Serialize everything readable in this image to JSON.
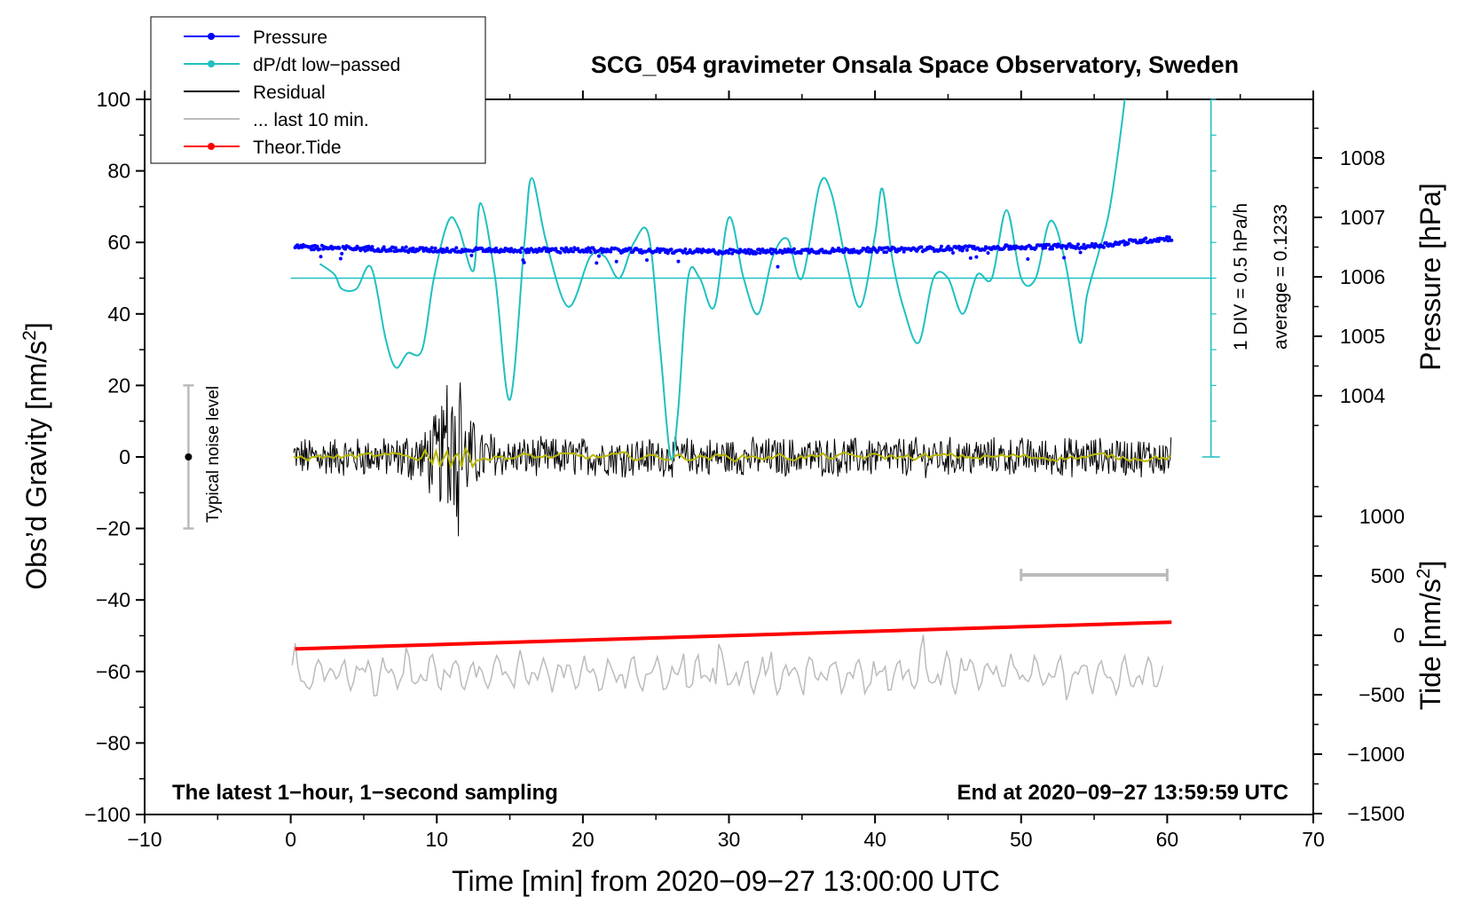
{
  "chart_data": {
    "type": "line",
    "title": "SCG_054 gravimeter Onsala Space Observatory, Sweden",
    "xlabel": "Time [min] from 2020−09−27 13:00:00 UTC",
    "ylabel_left_pre": "Obs’d Gravity [nm/s",
    "ylabel_left_sup": "2",
    "ylabel_left_post": "]",
    "ylabel_pressure": "Pressure [hPa]",
    "ylabel_tide_pre": "Tide [nm/s",
    "ylabel_tide_sup": "2",
    "ylabel_tide_post": "]",
    "xlim": [
      -10,
      70
    ],
    "ylim": [
      -100,
      100
    ],
    "x_ticks": [
      "−10",
      "0",
      "10",
      "20",
      "30",
      "40",
      "50",
      "60",
      "70"
    ],
    "y_ticks": [
      "100",
      "80",
      "60",
      "40",
      "20",
      "0",
      "−20",
      "−40",
      "−60",
      "−80",
      "−100"
    ],
    "pressure_ticks": [
      "1008",
      "1007",
      "1006",
      "1005",
      "1004"
    ],
    "pressure_ylim": [
      1003.05,
      1008.95
    ],
    "tide_ticks": [
      "1000",
      "500",
      "0",
      "−500",
      "−1000",
      "−1500"
    ],
    "tide_ylim": [
      -1500,
      1500
    ],
    "legend": [
      {
        "label": "Pressure",
        "color": "#0000ff",
        "marker": true
      },
      {
        "label": "dP/dt low−passed",
        "color": "#20c0c0",
        "marker": true
      },
      {
        "label": "Residual",
        "color": "#000000",
        "marker": false
      },
      {
        "label": "... last 10 min.",
        "color": "#bbbbbb",
        "marker": false
      },
      {
        "label": "Theor.Tide",
        "color": "#ff0000",
        "marker": true
      }
    ],
    "series": [
      {
        "name": "Pressure",
        "axis": "pressure_hPa",
        "color": "#0000ff",
        "x": [
          0.3,
          10,
          20,
          30,
          40,
          50,
          55,
          58,
          60.3
        ],
        "y": [
          1006.5,
          1006.45,
          1006.45,
          1006.42,
          1006.45,
          1006.5,
          1006.52,
          1006.6,
          1006.65
        ]
      },
      {
        "name": "dP/dt low-passed",
        "axis": "gravity_units",
        "color": "#20c0c0",
        "baseline": 50,
        "x": [
          2,
          3,
          3.5,
          4.5,
          5.5,
          6.5,
          7.2,
          8,
          9,
          9.8,
          10.8,
          11.5,
          12.5,
          13,
          14,
          15,
          16,
          16.5,
          17.5,
          19,
          20.5,
          21.5,
          22.5,
          23.5,
          24.5,
          25.3,
          26,
          26.5,
          27.2,
          28,
          29,
          30,
          31,
          32,
          33,
          34,
          35,
          36.2,
          37,
          38,
          39,
          40,
          40.5,
          41.2,
          42,
          43,
          44,
          45,
          46,
          47,
          48,
          49,
          50,
          51,
          52,
          53,
          54,
          54.5,
          55.3,
          56,
          56.6,
          57.1
        ],
        "y": [
          54,
          51,
          47,
          47,
          53,
          33,
          25,
          29,
          30,
          50,
          66,
          64,
          52,
          71,
          50,
          16,
          60,
          78,
          60,
          42,
          56,
          56,
          50,
          60,
          62,
          30,
          0,
          12,
          50,
          50,
          42,
          67,
          50,
          40,
          56,
          61,
          50,
          76,
          74,
          55,
          42,
          62,
          75,
          55,
          41,
          32,
          50,
          50,
          40,
          51,
          50,
          69,
          50,
          50,
          66,
          55,
          32,
          45,
          57,
          68,
          84,
          100
        ]
      },
      {
        "name": "Residual",
        "axis": "gravity_units",
        "color": "#000000",
        "note": "1-second residual noise around 0, burst near 10-12 min",
        "typical_range": [
          -8,
          8
        ],
        "burst_range": [
          -22,
          27
        ]
      },
      {
        "name": "Residual smoothed",
        "axis": "gravity_units",
        "color": "#b5b500",
        "typical_range": [
          -2,
          2
        ]
      },
      {
        "name": "... last 10 min.",
        "axis": "gravity_units",
        "color": "#bbbbbb",
        "typical_range": [
          -67,
          -52
        ],
        "mean": -62
      },
      {
        "name": "Theor.Tide",
        "axis": "tide_nm_s2",
        "color": "#ff0000",
        "x": [
          0.3,
          60.3
        ],
        "y": [
          -115,
          110
        ]
      }
    ],
    "noise_bar": {
      "x": -7,
      "range": [
        -20,
        20
      ],
      "center": 0,
      "label": "Typical noise level"
    },
    "div_scale": {
      "x": 63,
      "range": [
        0,
        100
      ],
      "label1": "1 DIV = 0.5 hPa/h",
      "label2": "average = 0.1233"
    },
    "window_bar": {
      "x": [
        50,
        60
      ],
      "y": -33
    },
    "footer_left": "The latest 1−hour, 1−second sampling",
    "footer_right": "End at 2020−09−27 13:59:59 UTC"
  }
}
